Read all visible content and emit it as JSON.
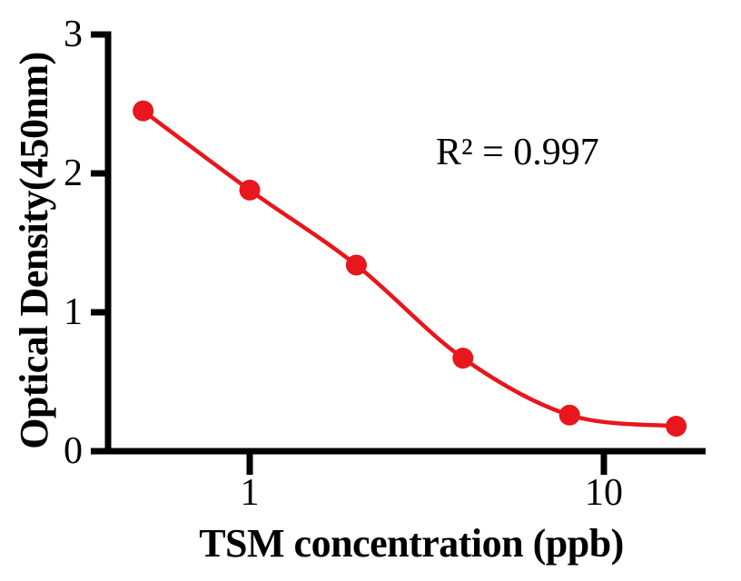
{
  "chart_data": {
    "type": "scatter",
    "title": "",
    "xlabel": "TSM concentration (ppb)",
    "ylabel": "Optical Density(450nm)",
    "annotation": "R² = 0.997",
    "x_scale": "log",
    "x": [
      0.5,
      1,
      2,
      4,
      8,
      16
    ],
    "y": [
      2.45,
      1.88,
      1.34,
      0.67,
      0.26,
      0.18
    ],
    "has_fit_curve": true,
    "xticks": [
      1,
      10
    ],
    "yticks": [
      0,
      1,
      2,
      3
    ],
    "ylim": [
      0,
      3
    ],
    "xlim": [
      0.4,
      19.5
    ],
    "grid": false,
    "legend": "none",
    "colors": {
      "series": "#e8161d",
      "axis": "#000000",
      "text": "#000000"
    }
  }
}
